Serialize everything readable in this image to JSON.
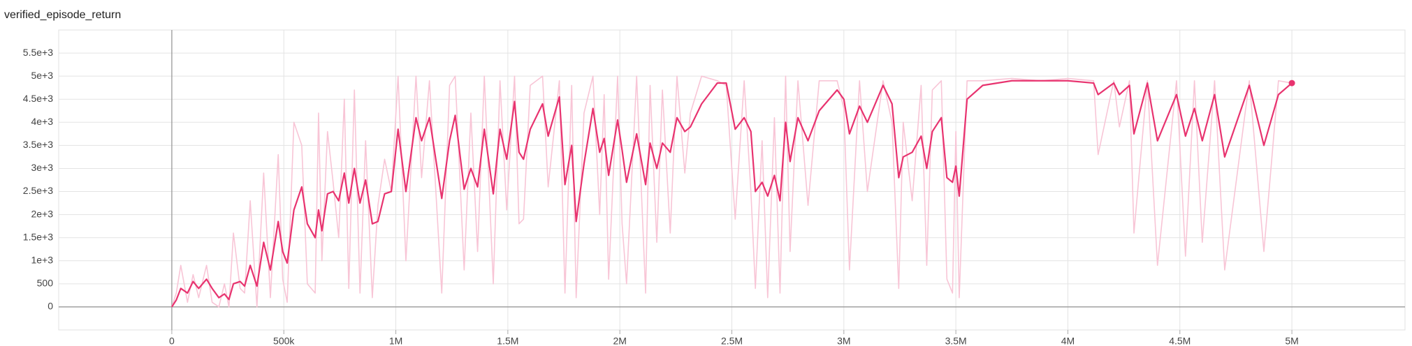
{
  "chart_data": {
    "type": "line",
    "title": "verified_episode_return",
    "x": [
      0,
      20000,
      40000,
      70000,
      95000,
      120000,
      155000,
      180000,
      210000,
      235000,
      255000,
      275000,
      305000,
      325000,
      350000,
      380000,
      410000,
      440000,
      475000,
      495000,
      515000,
      545000,
      580000,
      605000,
      640000,
      655000,
      670000,
      695000,
      720000,
      745000,
      770000,
      790000,
      815000,
      840000,
      865000,
      895000,
      920000,
      950000,
      980000,
      1010000,
      1045000,
      1090000,
      1115000,
      1150000,
      1205000,
      1240000,
      1265000,
      1305000,
      1335000,
      1365000,
      1395000,
      1435000,
      1465000,
      1495000,
      1530000,
      1550000,
      1570000,
      1600000,
      1655000,
      1680000,
      1730000,
      1755000,
      1785000,
      1805000,
      1840000,
      1880000,
      1910000,
      1930000,
      1950000,
      1990000,
      2010000,
      2030000,
      2075000,
      2115000,
      2135000,
      2165000,
      2190000,
      2225000,
      2255000,
      2290000,
      2315000,
      2365000,
      2435000,
      2475000,
      2515000,
      2555000,
      2585000,
      2605000,
      2635000,
      2660000,
      2690000,
      2715000,
      2740000,
      2760000,
      2795000,
      2840000,
      2890000,
      2970000,
      3000000,
      3025000,
      3070000,
      3105000,
      3175000,
      3215000,
      3245000,
      3265000,
      3305000,
      3345000,
      3370000,
      3395000,
      3435000,
      3460000,
      3485000,
      3500000,
      3515000,
      3550000,
      3620000,
      3750000,
      3880000,
      4000000,
      4115000,
      4135000,
      4205000,
      4230000,
      4275000,
      4295000,
      4355000,
      4400000,
      4485000,
      4525000,
      4565000,
      4600000,
      4655000,
      4700000,
      4810000,
      4875000,
      4940000,
      5000000
    ],
    "series": [
      {
        "color": "#f8c5d6",
        "values": [
          0,
          300,
          900,
          100,
          700,
          200,
          900,
          100,
          0,
          500,
          0,
          1600,
          400,
          300,
          2300,
          0,
          2900,
          200,
          3300,
          600,
          100,
          4000,
          3500,
          500,
          300,
          4200,
          1000,
          3800,
          2700,
          1500,
          4500,
          400,
          4700,
          300,
          3600,
          200,
          2200,
          3200,
          2500,
          5000,
          1000,
          5000,
          2800,
          4900,
          300,
          4800,
          5000,
          800,
          4200,
          1200,
          5000,
          500,
          4900,
          2100,
          5000,
          1800,
          1900,
          4800,
          5000,
          2600,
          4900,
          300,
          4800,
          200,
          4200,
          5000,
          2000,
          4600,
          600,
          5000,
          1800,
          500,
          5000,
          300,
          4800,
          1400,
          4700,
          1600,
          5000,
          2900,
          4200,
          5000,
          4900,
          4800,
          1900,
          4900,
          2500,
          400,
          3600,
          200,
          4100,
          300,
          5000,
          1200,
          4900,
          2200,
          4900,
          4900,
          4300,
          800,
          4900,
          2500,
          4900,
          4000,
          400,
          4000,
          2300,
          4800,
          900,
          4700,
          4900,
          600,
          300,
          3800,
          200,
          4900,
          4900,
          4950,
          4900,
          4950,
          4900,
          3300,
          4900,
          3900,
          4900,
          1600,
          4900,
          900,
          4900,
          1100,
          4900,
          1400,
          4900,
          800,
          4900,
          1200,
          4900,
          4850
        ]
      },
      {
        "color": "#e8336f",
        "values": [
          0,
          150,
          400,
          300,
          550,
          400,
          600,
          400,
          200,
          280,
          160,
          500,
          550,
          450,
          900,
          450,
          1400,
          800,
          1850,
          1200,
          950,
          2100,
          2600,
          1800,
          1500,
          2100,
          1650,
          2450,
          2500,
          2300,
          2900,
          2250,
          3000,
          2250,
          2750,
          1800,
          1850,
          2450,
          2500,
          3850,
          2500,
          4100,
          3600,
          4100,
          2350,
          3600,
          4150,
          2550,
          3000,
          2600,
          3850,
          2450,
          3850,
          3200,
          4450,
          3350,
          3200,
          3850,
          4400,
          3700,
          4550,
          2650,
          3500,
          1850,
          3100,
          4300,
          3350,
          3650,
          2850,
          4050,
          3400,
          2700,
          3750,
          2650,
          3550,
          3000,
          3550,
          3350,
          4100,
          3800,
          3900,
          4400,
          4850,
          4850,
          3850,
          4100,
          3800,
          2500,
          2700,
          2400,
          2850,
          2300,
          4000,
          3150,
          4100,
          3600,
          4250,
          4700,
          4500,
          3750,
          4350,
          4000,
          4800,
          4400,
          2800,
          3250,
          3350,
          3700,
          3000,
          3800,
          4100,
          2800,
          2700,
          3050,
          2400,
          4500,
          4800,
          4900,
          4900,
          4900,
          4850,
          4600,
          4850,
          4600,
          4800,
          3750,
          4850,
          3600,
          4600,
          3700,
          4300,
          3600,
          4600,
          3250,
          4800,
          3500,
          4600,
          4850
        ]
      }
    ],
    "xlim": [
      -505000,
      5505000
    ],
    "xticks": [
      0,
      {
        "value": 500000,
        "label": "500k"
      },
      {
        "value": 1000000,
        "label": "1M"
      },
      {
        "value": 1500000,
        "label": "1.5M"
      },
      {
        "value": 2000000,
        "label": "2M"
      },
      {
        "value": 2500000,
        "label": "2.5M"
      },
      {
        "value": 3000000,
        "label": "3M"
      },
      {
        "value": 3500000,
        "label": "3.5M"
      },
      {
        "value": 4000000,
        "label": "4M"
      },
      {
        "value": 4500000,
        "label": "4.5M"
      },
      {
        "value": 5000000,
        "label": "5M"
      }
    ],
    "ylim": [
      -500,
      6000
    ],
    "yticks": [
      0,
      500,
      {
        "value": 1000,
        "label": "1e+3"
      },
      {
        "value": 1500,
        "label": "1.5e+3"
      },
      {
        "value": 2000,
        "label": "2e+3"
      },
      {
        "value": 2500,
        "label": "2.5e+3"
      },
      {
        "value": 3000,
        "label": "3e+3"
      },
      {
        "value": 3500,
        "label": "3.5e+3"
      },
      {
        "value": 4000,
        "label": "4e+3"
      },
      {
        "value": 4500,
        "label": "4.5e+3"
      },
      {
        "value": 5000,
        "label": "5e+3"
      },
      {
        "value": 5500,
        "label": "5.5e+3"
      }
    ],
    "grid": true
  }
}
